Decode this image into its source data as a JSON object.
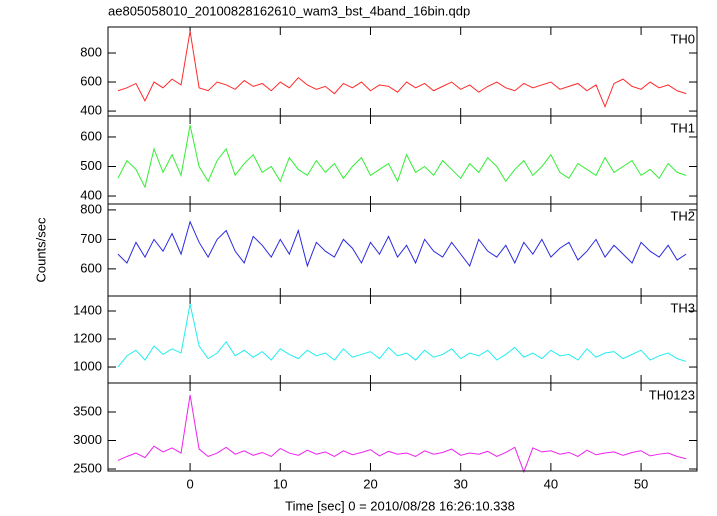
{
  "title": "ae805058010_20100828162610_wam3_bst_4band_16bin.qdp",
  "ylabel": "Counts/sec",
  "xlabel": "Time [sec] 0 = 2010/08/28 16:26:10.338",
  "chart_data": [
    {
      "type": "line",
      "label": "TH0",
      "color": "#ff2a2a",
      "xlim": [
        -9.1,
        56.2
      ],
      "ylim": [
        366,
        979
      ],
      "yticks": [
        400,
        600,
        800
      ],
      "x": [
        -8,
        -7,
        -6,
        -5,
        -4,
        -3,
        -2,
        -1,
        0,
        1,
        2,
        3,
        4,
        5,
        6,
        7,
        8,
        9,
        10,
        11,
        12,
        13,
        14,
        15,
        16,
        17,
        18,
        19,
        20,
        21,
        22,
        23,
        24,
        25,
        26,
        27,
        28,
        29,
        30,
        31,
        32,
        33,
        34,
        35,
        36,
        37,
        38,
        39,
        40,
        41,
        42,
        43,
        44,
        45,
        46,
        47,
        48,
        49,
        50,
        51,
        52,
        53,
        54,
        55
      ],
      "values": [
        540,
        560,
        590,
        470,
        600,
        560,
        620,
        580,
        950,
        560,
        540,
        600,
        580,
        550,
        610,
        570,
        590,
        540,
        600,
        560,
        630,
        580,
        550,
        570,
        520,
        590,
        560,
        600,
        540,
        580,
        570,
        530,
        600,
        560,
        590,
        540,
        570,
        600,
        550,
        580,
        530,
        570,
        600,
        560,
        540,
        590,
        560,
        580,
        600,
        550,
        570,
        590,
        540,
        580,
        430,
        590,
        620,
        570,
        550,
        600,
        560,
        580,
        540,
        520
      ]
    },
    {
      "type": "line",
      "label": "TH1",
      "color": "#33ee33",
      "xlim": [
        -9.1,
        56.2
      ],
      "ylim": [
        373,
        671
      ],
      "yticks": [
        400,
        500,
        600
      ],
      "x": [
        -8,
        -7,
        -6,
        -5,
        -4,
        -3,
        -2,
        -1,
        0,
        1,
        2,
        3,
        4,
        5,
        6,
        7,
        8,
        9,
        10,
        11,
        12,
        13,
        14,
        15,
        16,
        17,
        18,
        19,
        20,
        21,
        22,
        23,
        24,
        25,
        26,
        27,
        28,
        29,
        30,
        31,
        32,
        33,
        34,
        35,
        36,
        37,
        38,
        39,
        40,
        41,
        42,
        43,
        44,
        45,
        46,
        47,
        48,
        49,
        50,
        51,
        52,
        53,
        54,
        55
      ],
      "values": [
        460,
        520,
        490,
        430,
        560,
        480,
        540,
        470,
        640,
        500,
        450,
        520,
        560,
        470,
        510,
        540,
        480,
        500,
        450,
        530,
        490,
        470,
        520,
        480,
        510,
        460,
        500,
        530,
        470,
        490,
        510,
        450,
        540,
        480,
        500,
        470,
        520,
        490,
        460,
        510,
        480,
        530,
        500,
        450,
        490,
        520,
        470,
        500,
        540,
        480,
        460,
        510,
        490,
        470,
        530,
        480,
        500,
        520,
        470,
        490,
        460,
        510,
        480,
        470
      ]
    },
    {
      "type": "line",
      "label": "TH2",
      "color": "#2a2ae0",
      "xlim": [
        -9.1,
        56.2
      ],
      "ylim": [
        508,
        820
      ],
      "yticks": [
        600,
        700,
        800
      ],
      "x": [
        -8,
        -7,
        -6,
        -5,
        -4,
        -3,
        -2,
        -1,
        0,
        1,
        2,
        3,
        4,
        5,
        6,
        7,
        8,
        9,
        10,
        11,
        12,
        13,
        14,
        15,
        16,
        17,
        18,
        19,
        20,
        21,
        22,
        23,
        24,
        25,
        26,
        27,
        28,
        29,
        30,
        31,
        32,
        33,
        34,
        35,
        36,
        37,
        38,
        39,
        40,
        41,
        42,
        43,
        44,
        45,
        46,
        47,
        48,
        49,
        50,
        51,
        52,
        53,
        54,
        55
      ],
      "values": [
        650,
        620,
        690,
        640,
        700,
        660,
        720,
        650,
        760,
        690,
        640,
        700,
        730,
        660,
        620,
        710,
        680,
        640,
        700,
        650,
        730,
        610,
        690,
        660,
        640,
        700,
        670,
        620,
        690,
        650,
        710,
        640,
        680,
        620,
        700,
        660,
        640,
        690,
        650,
        610,
        700,
        660,
        640,
        680,
        620,
        690,
        650,
        700,
        640,
        670,
        690,
        630,
        660,
        700,
        640,
        680,
        650,
        620,
        690,
        660,
        640,
        680,
        630,
        650
      ]
    },
    {
      "type": "line",
      "label": "TH3",
      "color": "#22eeee",
      "xlim": [
        -9.1,
        56.2
      ],
      "ylim": [
        886,
        1507
      ],
      "yticks": [
        1000,
        1200,
        1400
      ],
      "x": [
        -8,
        -7,
        -6,
        -5,
        -4,
        -3,
        -2,
        -1,
        0,
        1,
        2,
        3,
        4,
        5,
        6,
        7,
        8,
        9,
        10,
        11,
        12,
        13,
        14,
        15,
        16,
        17,
        18,
        19,
        20,
        21,
        22,
        23,
        24,
        25,
        26,
        27,
        28,
        29,
        30,
        31,
        32,
        33,
        34,
        35,
        36,
        37,
        38,
        39,
        40,
        41,
        42,
        43,
        44,
        45,
        46,
        47,
        48,
        49,
        50,
        51,
        52,
        53,
        54,
        55
      ],
      "values": [
        1000,
        1080,
        1120,
        1050,
        1150,
        1090,
        1130,
        1100,
        1450,
        1150,
        1060,
        1100,
        1180,
        1080,
        1120,
        1070,
        1110,
        1050,
        1130,
        1090,
        1060,
        1120,
        1080,
        1100,
        1050,
        1130,
        1070,
        1090,
        1110,
        1060,
        1140,
        1080,
        1100,
        1050,
        1120,
        1070,
        1090,
        1130,
        1060,
        1100,
        1080,
        1120,
        1050,
        1090,
        1140,
        1070,
        1100,
        1060,
        1120,
        1080,
        1090,
        1050,
        1130,
        1070,
        1100,
        1110,
        1060,
        1090,
        1120,
        1050,
        1080,
        1100,
        1060,
        1040
      ]
    },
    {
      "type": "line",
      "label": "TH0123",
      "color": "#ee22ee",
      "xlim": [
        -9.1,
        56.2
      ],
      "ylim": [
        2465,
        4009
      ],
      "yticks": [
        2500,
        3000,
        3500
      ],
      "xticks": [
        0,
        10,
        20,
        30,
        40,
        50
      ],
      "x": [
        -8,
        -7,
        -6,
        -5,
        -4,
        -3,
        -2,
        -1,
        0,
        1,
        2,
        3,
        4,
        5,
        6,
        7,
        8,
        9,
        10,
        11,
        12,
        13,
        14,
        15,
        16,
        17,
        18,
        19,
        20,
        21,
        22,
        23,
        24,
        25,
        26,
        27,
        28,
        29,
        30,
        31,
        32,
        33,
        34,
        35,
        36,
        37,
        38,
        39,
        40,
        41,
        42,
        43,
        44,
        45,
        46,
        47,
        48,
        49,
        50,
        51,
        52,
        53,
        54,
        55
      ],
      "values": [
        2650,
        2720,
        2780,
        2700,
        2900,
        2800,
        2870,
        2780,
        3800,
        2850,
        2720,
        2780,
        2880,
        2760,
        2820,
        2740,
        2790,
        2720,
        2860,
        2780,
        2740,
        2830,
        2760,
        2800,
        2720,
        2820,
        2750,
        2790,
        2840,
        2730,
        2810,
        2760,
        2780,
        2720,
        2820,
        2760,
        2790,
        2850,
        2740,
        2780,
        2760,
        2810,
        2720,
        2790,
        2880,
        2450,
        2870,
        2800,
        2820,
        2760,
        2790,
        2720,
        2830,
        2750,
        2780,
        2800,
        2740,
        2790,
        2820,
        2730,
        2760,
        2780,
        2720,
        2680
      ]
    }
  ]
}
